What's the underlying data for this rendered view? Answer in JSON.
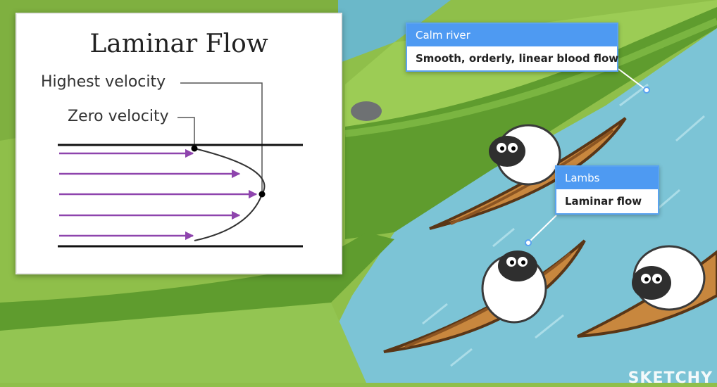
{
  "diagram": {
    "title": "Laminar Flow",
    "label_highest": "Highest velocity",
    "label_zero": "Zero velocity"
  },
  "callouts": {
    "river": {
      "title": "Calm river",
      "text": "Smooth, orderly, linear blood flow"
    },
    "lambs": {
      "title": "Lambs",
      "text": "Laminar flow"
    }
  },
  "watermark": "SKETCHY",
  "colors": {
    "arrow": "#8e44ad",
    "accent": "#4e9af2",
    "water": "#7cc4d6",
    "grass": "#8fbf4a"
  }
}
